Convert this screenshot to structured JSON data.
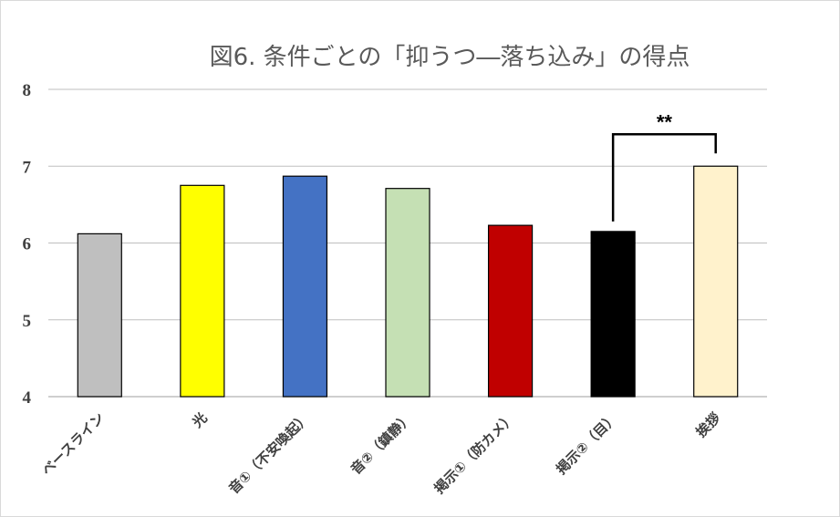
{
  "chart_data": {
    "type": "bar",
    "title": "図6.  条件ごとの「抑うつ―落ち込み」の得点",
    "xlabel": "",
    "ylabel": "",
    "ylim": [
      4,
      8
    ],
    "yticks": [
      "4",
      "5",
      "6",
      "7",
      "8"
    ],
    "grid": true,
    "categories": [
      "ベースライン",
      "光",
      "音①（不安喚起）",
      "音②（鎮静）",
      "掲示①（防カメ）",
      "掲示②（目）",
      "挨拶"
    ],
    "values": [
      6.12,
      6.75,
      6.87,
      6.71,
      6.23,
      6.15,
      7.0
    ],
    "bar_colors": [
      "#bfbfbf",
      "#ffff00",
      "#4472c4",
      "#c5e0b4",
      "#c00000",
      "#000000",
      "#fff2cc"
    ],
    "annotations": [
      {
        "text": "**",
        "from": "掲示②（目）",
        "to": "挨拶"
      }
    ]
  }
}
